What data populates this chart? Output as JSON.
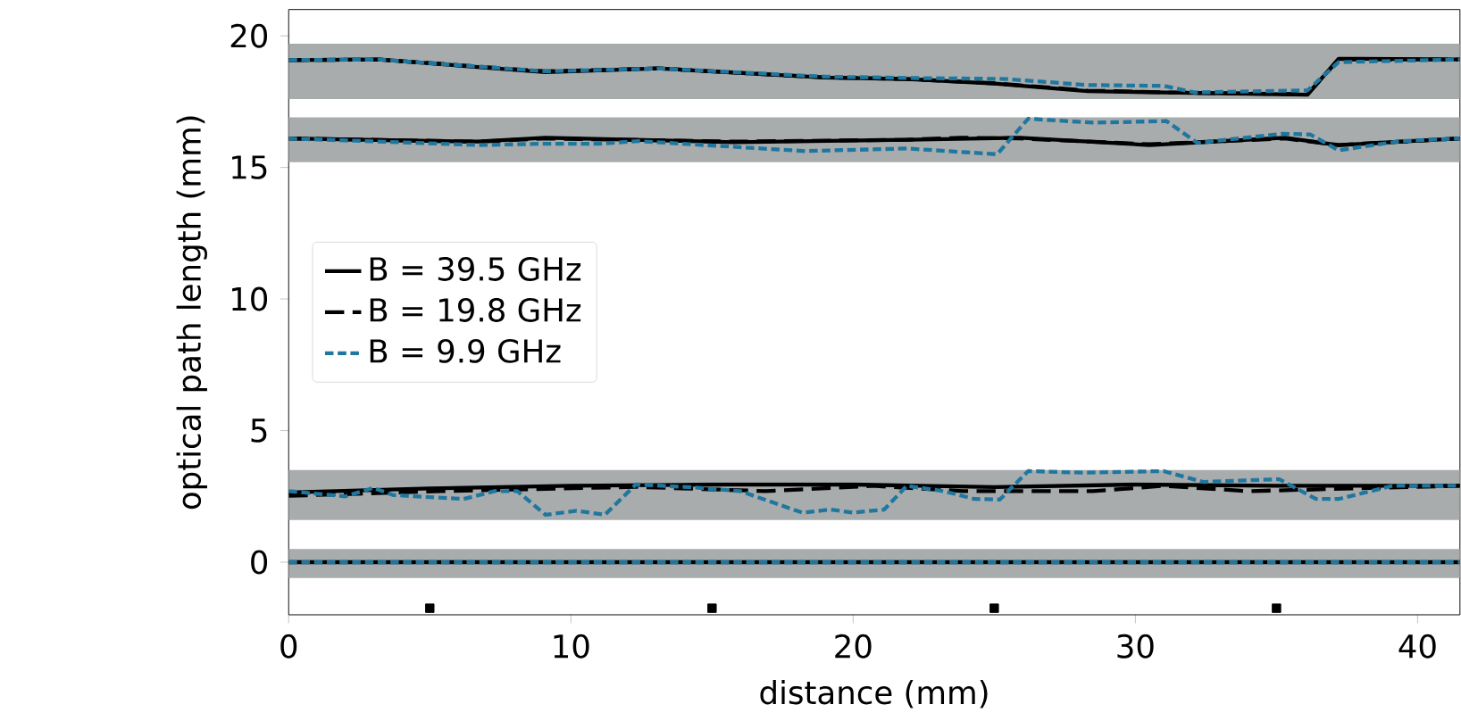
{
  "chart_data": {
    "type": "line",
    "xlabel": "distance (mm)",
    "ylabel": "optical path length (mm)",
    "xlim": [
      0,
      41.5
    ],
    "ylim": [
      -2,
      21
    ],
    "xticks": [
      0,
      10,
      20,
      30,
      40
    ],
    "yticks": [
      0,
      5,
      10,
      15,
      20
    ],
    "grid": false,
    "legend": "left",
    "bands": [
      {
        "axis": "y",
        "from": 17.6,
        "to": 19.7,
        "color": "#a8acac"
      },
      {
        "axis": "y",
        "from": 15.2,
        "to": 16.9,
        "color": "#a8acac"
      },
      {
        "axis": "y",
        "from": 1.6,
        "to": 3.5,
        "color": "#a8acac"
      },
      {
        "axis": "y",
        "from": -0.6,
        "to": 0.5,
        "color": "#a8acac"
      }
    ],
    "series": [
      {
        "name": "B = 39.5 GHz",
        "color": "#000000",
        "line_style": "solid",
        "x": [
          0,
          3.2,
          9.1,
          13.1,
          19,
          21.9,
          25,
          28.3,
          31,
          36.1,
          37.2,
          41.5
        ],
        "values": [
          19.08,
          19.1,
          18.62,
          18.76,
          18.42,
          18.36,
          18.19,
          17.9,
          17.85,
          17.76,
          19.13,
          19.1
        ]
      },
      {
        "name": "B = 19.8 GHz",
        "color": "#000000",
        "line_style": "dashed",
        "x": [
          0,
          3.2,
          9.1,
          13.1,
          19,
          21.9,
          25,
          28.3,
          31,
          36.1,
          37.2,
          41.5
        ],
        "values": [
          19.08,
          19.1,
          18.65,
          18.76,
          18.42,
          18.36,
          18.2,
          17.92,
          17.85,
          17.78,
          19.1,
          19.1
        ]
      },
      {
        "name": "B = 9.9 GHz",
        "color": "#1f77a0",
        "line_style": "dotted",
        "x": [
          0,
          3.2,
          9.1,
          13.1,
          19,
          21.9,
          25.4,
          28.3,
          31,
          32.1,
          36.1,
          37.2,
          41.5
        ],
        "values": [
          19.08,
          19.1,
          18.65,
          18.76,
          18.45,
          18.4,
          18.36,
          18.13,
          18.1,
          17.85,
          17.93,
          19.0,
          19.1
        ]
      },
      {
        "color": "#000000",
        "line_style": "solid",
        "x": [
          0,
          6.7,
          9.1,
          15.8,
          21.9,
          25.9,
          30.5,
          35.3,
          37.2,
          41.5
        ],
        "values": [
          16.1,
          15.98,
          16.13,
          15.96,
          16.05,
          16.13,
          15.85,
          16.13,
          15.85,
          16.1
        ]
      },
      {
        "color": "#000000",
        "line_style": "dashed",
        "x": [
          0,
          6.7,
          9.1,
          15.8,
          21.9,
          23.8,
          25.9,
          30.5,
          35.3,
          37.2,
          41.5
        ],
        "values": [
          16.1,
          15.98,
          16.1,
          15.98,
          16.05,
          16.13,
          16.1,
          15.88,
          16.1,
          15.85,
          16.1
        ]
      },
      {
        "color": "#1f77a0",
        "line_style": "dotted",
        "x": [
          0,
          6.7,
          9.1,
          11,
          12.4,
          18.3,
          21.9,
          25.1,
          26.2,
          28.5,
          31.1,
          32.2,
          35.2,
          36.2,
          37.2,
          39.4,
          41.5
        ],
        "values": [
          16.1,
          15.85,
          15.9,
          15.9,
          16.0,
          15.62,
          15.72,
          15.5,
          16.85,
          16.7,
          16.76,
          15.93,
          16.28,
          16.25,
          15.65,
          16.0,
          16.1
        ]
      },
      {
        "color": "#000000",
        "line_style": "solid",
        "x": [
          0,
          5,
          10,
          15,
          20,
          25,
          30,
          35,
          41.5
        ],
        "values": [
          2.65,
          2.8,
          2.9,
          2.95,
          2.95,
          2.85,
          2.95,
          2.9,
          2.9
        ]
      },
      {
        "color": "#000000",
        "line_style": "dashed",
        "x": [
          0,
          5.4,
          12.3,
          16.9,
          20.7,
          23.9,
          28.5,
          31,
          34,
          41.5
        ],
        "values": [
          2.52,
          2.7,
          2.86,
          2.7,
          2.9,
          2.7,
          2.7,
          2.9,
          2.7,
          2.9
        ]
      },
      {
        "color": "#1f77a0",
        "line_style": "dotted",
        "x": [
          0,
          2,
          3,
          3.7,
          6.2,
          7.3,
          8.1,
          9.1,
          10.2,
          11.2,
          12.3,
          14.2,
          16,
          18.2,
          19.2,
          20,
          21.1,
          21.9,
          23.2,
          24.3,
          25.2,
          26.2,
          28.1,
          31,
          32.4,
          35.1,
          36.4,
          37.2,
          39.1,
          41.5
        ],
        "values": [
          2.7,
          2.5,
          2.82,
          2.55,
          2.4,
          2.7,
          2.7,
          1.8,
          1.95,
          1.8,
          2.95,
          2.85,
          2.7,
          1.88,
          2.0,
          1.88,
          2.0,
          2.9,
          2.7,
          2.4,
          2.38,
          3.46,
          3.4,
          3.46,
          3.05,
          3.15,
          2.4,
          2.4,
          2.9,
          2.9
        ]
      },
      {
        "color": "#000000",
        "line_style": "solid",
        "x": [
          0,
          41.5
        ],
        "values": [
          0,
          0
        ]
      },
      {
        "color": "#1f77a0",
        "line_style": "dotted",
        "x": [
          0,
          41.5
        ],
        "values": [
          0,
          0
        ]
      },
      {
        "type": "scatter",
        "marker": "square",
        "color": "#000000",
        "x": [
          5,
          15,
          25,
          35
        ],
        "values": [
          -1.75,
          -1.75,
          -1.75,
          -1.75
        ]
      }
    ]
  }
}
